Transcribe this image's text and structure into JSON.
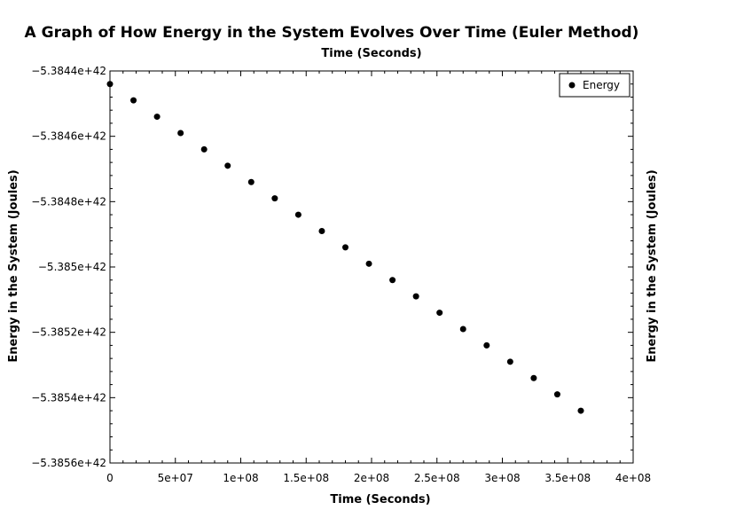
{
  "chart_data": {
    "type": "scatter",
    "title": "A Graph of How Energy in the System Evolves Over Time (Euler Method)",
    "xlabel_top": "Time (Seconds)",
    "xlabel": "Time (Seconds)",
    "ylabel": "Energy in the System (Joules)",
    "ylabel_right": "Energy in the System (Joules)",
    "xlim": [
      0,
      400000000
    ],
    "ylim": [
      -5.3856e+42,
      -5.3844e+42
    ],
    "x_ticks": [
      0,
      50000000,
      100000000,
      150000000,
      200000000,
      250000000,
      300000000,
      350000000,
      400000000
    ],
    "x_tick_labels": [
      "0",
      "5e+07",
      "1e+08",
      "1.5e+08",
      "2e+08",
      "2.5e+08",
      "3e+08",
      "3.5e+08",
      "4e+08"
    ],
    "y_ticks": [
      -5.3844e+42,
      -5.3846e+42,
      -5.3848e+42,
      -5.385e+42,
      -5.3852e+42,
      -5.3854e+42,
      -5.3856e+42
    ],
    "y_tick_labels": [
      "−5.3844e+42",
      "−5.3846e+42",
      "−5.3848e+42",
      "−5.385e+42",
      "−5.3852e+42",
      "−5.3854e+42",
      "−5.3856e+42"
    ],
    "legend_position": "top-right",
    "grid": false,
    "series": [
      {
        "name": "Energy",
        "color": "#000000",
        "x": [
          0,
          18000000,
          36000000,
          54000000,
          72000000,
          90000000,
          108000000,
          126000000,
          144000000,
          162000000,
          180000000,
          198000000,
          216000000,
          234000000,
          252000000,
          270000000,
          288000000,
          306000000,
          324000000,
          342000000,
          360000000
        ],
        "y": [
          -5.38444e+42,
          -5.38449e+42,
          -5.38454e+42,
          -5.38459e+42,
          -5.38464e+42,
          -5.38469e+42,
          -5.38474e+42,
          -5.38479e+42,
          -5.38484e+42,
          -5.38489e+42,
          -5.38494e+42,
          -5.38499e+42,
          -5.38504e+42,
          -5.38509e+42,
          -5.38514e+42,
          -5.38519e+42,
          -5.38524e+42,
          -5.38529e+42,
          -5.38534e+42,
          -5.38539e+42,
          -5.38544e+42
        ]
      }
    ]
  }
}
